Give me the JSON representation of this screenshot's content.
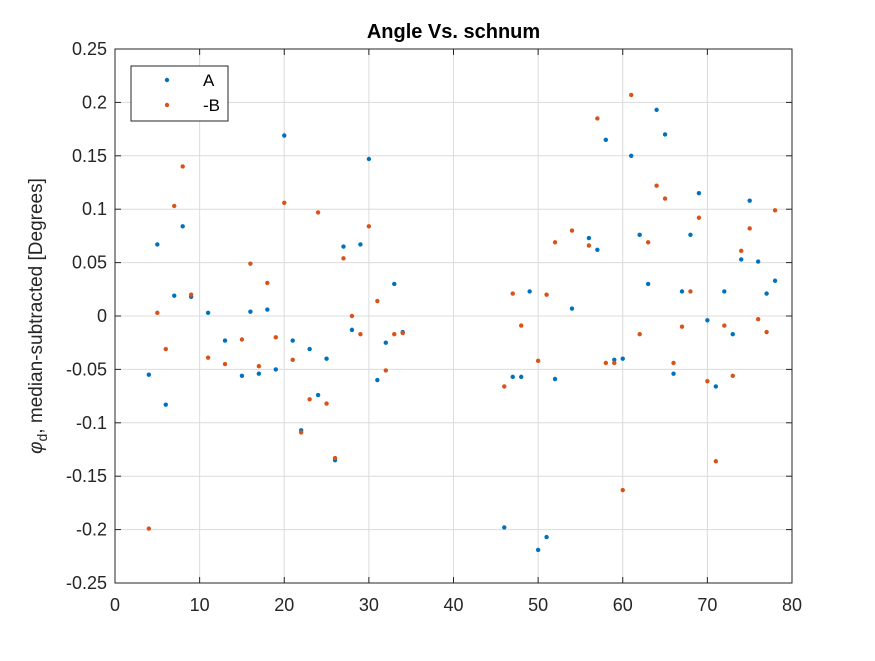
{
  "chart_data": {
    "type": "scatter",
    "title": "Angle Vs. schnum",
    "xlabel": "",
    "ylabel": {
      "symbol": "φ",
      "subscript": "d",
      "text": ", median-subtracted [Degrees]"
    },
    "xlim": [
      0,
      80
    ],
    "ylim": [
      -0.25,
      0.25
    ],
    "x_ticks": [
      0,
      10,
      20,
      30,
      40,
      50,
      60,
      70,
      80
    ],
    "x_tick_labels": [
      "0",
      "10",
      "20",
      "30",
      "40",
      "50",
      "60",
      "70",
      "80"
    ],
    "y_ticks": [
      0.25,
      0.2,
      0.15,
      0.1,
      0.05,
      0,
      -0.05,
      -0.1,
      -0.15,
      -0.2,
      -0.25
    ],
    "y_tick_labels": [
      "0.25",
      "0.2",
      "0.15",
      "0.1",
      "0.05",
      "0",
      "-0.05",
      "-0.1",
      "-0.15",
      "-0.2",
      "-0.25"
    ],
    "grid": true,
    "legend_position": "top-left",
    "series": [
      {
        "name": "A",
        "color": "#0072BD",
        "points": [
          [
            4,
            -0.055
          ],
          [
            5,
            0.067
          ],
          [
            6,
            -0.083
          ],
          [
            7,
            0.019
          ],
          [
            8,
            0.084
          ],
          [
            9,
            0.018
          ],
          [
            11,
            0.003
          ],
          [
            13,
            -0.023
          ],
          [
            15,
            -0.056
          ],
          [
            16,
            0.004
          ],
          [
            17,
            -0.054
          ],
          [
            18,
            0.006
          ],
          [
            19,
            -0.05
          ],
          [
            20,
            0.169
          ],
          [
            21,
            -0.023
          ],
          [
            22,
            -0.107
          ],
          [
            23,
            -0.031
          ],
          [
            24,
            -0.074
          ],
          [
            25,
            -0.04
          ],
          [
            26,
            -0.135
          ],
          [
            27,
            0.065
          ],
          [
            28,
            -0.013
          ],
          [
            29,
            0.067
          ],
          [
            30,
            0.147
          ],
          [
            31,
            -0.06
          ],
          [
            32,
            -0.025
          ],
          [
            33,
            0.03
          ],
          [
            34,
            -0.015
          ],
          [
            46,
            -0.198
          ],
          [
            47,
            -0.057
          ],
          [
            48,
            -0.057
          ],
          [
            49,
            0.023
          ],
          [
            50,
            -0.219
          ],
          [
            51,
            -0.207
          ],
          [
            52,
            -0.059
          ],
          [
            54,
            0.007
          ],
          [
            56,
            0.073
          ],
          [
            57,
            0.062
          ],
          [
            58,
            0.165
          ],
          [
            59,
            -0.041
          ],
          [
            60,
            -0.04
          ],
          [
            61,
            0.15
          ],
          [
            62,
            0.076
          ],
          [
            63,
            0.03
          ],
          [
            64,
            0.193
          ],
          [
            65,
            0.17
          ],
          [
            66,
            -0.054
          ],
          [
            67,
            0.023
          ],
          [
            68,
            0.076
          ],
          [
            69,
            0.115
          ],
          [
            70,
            -0.004
          ],
          [
            71,
            -0.066
          ],
          [
            72,
            0.023
          ],
          [
            73,
            -0.017
          ],
          [
            74,
            0.053
          ],
          [
            75,
            0.108
          ],
          [
            76,
            0.051
          ],
          [
            77,
            0.021
          ],
          [
            78,
            0.033
          ]
        ]
      },
      {
        "name": "-B",
        "color": "#D95319",
        "points": [
          [
            4,
            -0.199
          ],
          [
            5,
            0.003
          ],
          [
            6,
            -0.031
          ],
          [
            7,
            0.103
          ],
          [
            8,
            0.14
          ],
          [
            9,
            0.02
          ],
          [
            11,
            -0.039
          ],
          [
            13,
            -0.045
          ],
          [
            15,
            -0.022
          ],
          [
            16,
            0.049
          ],
          [
            17,
            -0.047
          ],
          [
            18,
            0.031
          ],
          [
            19,
            -0.02
          ],
          [
            20,
            0.106
          ],
          [
            21,
            -0.041
          ],
          [
            22,
            -0.109
          ],
          [
            23,
            -0.078
          ],
          [
            24,
            0.097
          ],
          [
            25,
            -0.082
          ],
          [
            26,
            -0.133
          ],
          [
            27,
            0.054
          ],
          [
            28,
            0.0
          ],
          [
            29,
            -0.017
          ],
          [
            30,
            0.084
          ],
          [
            31,
            0.014
          ],
          [
            32,
            -0.051
          ],
          [
            33,
            -0.017
          ],
          [
            34,
            -0.016
          ],
          [
            46,
            -0.066
          ],
          [
            47,
            0.021
          ],
          [
            48,
            -0.009
          ],
          [
            50,
            -0.042
          ],
          [
            51,
            0.02
          ],
          [
            52,
            0.069
          ],
          [
            54,
            0.08
          ],
          [
            56,
            0.066
          ],
          [
            57,
            0.185
          ],
          [
            58,
            -0.044
          ],
          [
            59,
            -0.044
          ],
          [
            60,
            -0.163
          ],
          [
            61,
            0.207
          ],
          [
            62,
            -0.017
          ],
          [
            63,
            0.069
          ],
          [
            64,
            0.122
          ],
          [
            65,
            0.11
          ],
          [
            66,
            -0.044
          ],
          [
            67,
            -0.01
          ],
          [
            68,
            0.023
          ],
          [
            69,
            0.092
          ],
          [
            70,
            -0.061
          ],
          [
            71,
            -0.136
          ],
          [
            72,
            -0.009
          ],
          [
            73,
            -0.056
          ],
          [
            74,
            0.061
          ],
          [
            75,
            0.082
          ],
          [
            76,
            -0.003
          ],
          [
            77,
            -0.015
          ],
          [
            78,
            0.099
          ]
        ]
      }
    ]
  }
}
